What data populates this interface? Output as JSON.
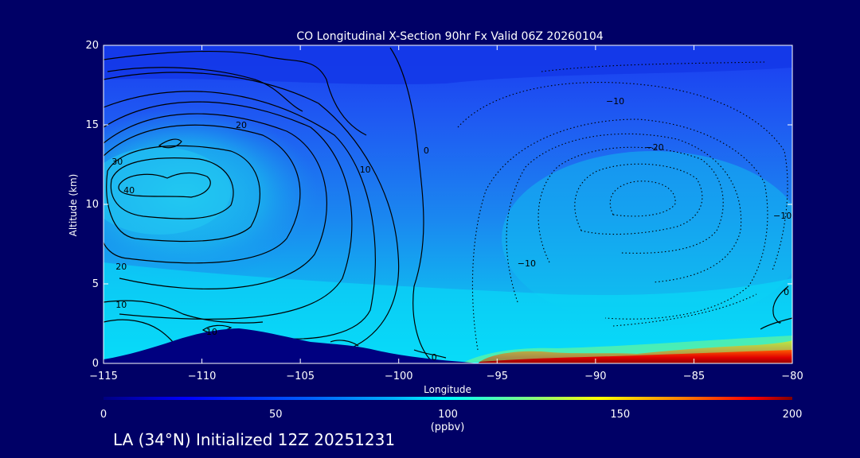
{
  "chart_data": {
    "type": "contour",
    "title": "CO Longitudinal X-Section 90hr  Fx Valid 06Z 20260104",
    "xlabel": "Longitude",
    "ylabel": "Altitude (km)",
    "xlim": [
      -115,
      -80
    ],
    "ylim": [
      0,
      20
    ],
    "x_ticks": [
      -115,
      -110,
      -105,
      -100,
      -95,
      -90,
      -85,
      -80
    ],
    "x_tick_labels": [
      "−115",
      "−110",
      "−105",
      "−100",
      "−95",
      "−90",
      "−85",
      "−80"
    ],
    "y_ticks": [
      0,
      5,
      10,
      15,
      20
    ],
    "y_tick_labels": [
      "0",
      "5",
      "10",
      "15",
      "20"
    ],
    "filled_field": {
      "name": "CO concentration",
      "description": "Filled contours; max ~200 ppbv near surface from -96 to -80; ~75-85 ppbv plume 5-14 km west of -105; ~20-35 ppbv in upper levels",
      "surface_max_ppbv": 200
    },
    "contour_labels": [
      {
        "text": "40",
        "lon": -113.7,
        "alt": 10.9
      },
      {
        "text": "30",
        "lon": -114.3,
        "alt": 12.7
      },
      {
        "text": "20",
        "lon": -108.0,
        "alt": 15.0
      },
      {
        "text": "20",
        "lon": -114.1,
        "alt": 6.1
      },
      {
        "text": "10",
        "lon": -114.1,
        "alt": 3.7
      },
      {
        "text": "10",
        "lon": -109.5,
        "alt": 2.0
      },
      {
        "text": "10",
        "lon": -101.7,
        "alt": 12.2
      },
      {
        "text": "0",
        "lon": -98.6,
        "alt": 13.4
      },
      {
        "text": "0",
        "lon": -98.2,
        "alt": 0.4
      },
      {
        "text": "−10",
        "lon": -89.0,
        "alt": 16.5
      },
      {
        "text": "−20",
        "lon": -87.0,
        "alt": 13.6
      },
      {
        "text": "−10",
        "lon": -93.5,
        "alt": 6.3
      },
      {
        "text": "−10",
        "lon": -80.5,
        "alt": 9.3
      },
      {
        "text": "0",
        "lon": -80.3,
        "alt": 4.5
      }
    ],
    "colorbar": {
      "min": 0,
      "max": 200,
      "ticks": [
        0,
        50,
        100,
        150,
        200
      ],
      "tick_labels": [
        "0",
        "50",
        "100",
        "150",
        "200"
      ],
      "units": "(ppbv)",
      "colormap": [
        "#000080",
        "#0000ff",
        "#0080ff",
        "#00ffff",
        "#80ff80",
        "#ffff00",
        "#ff8000",
        "#ff0000",
        "#800000"
      ]
    }
  },
  "footer": "LA (34°N) Initialized 12Z 20251231",
  "colors": {
    "background": "#000066",
    "terrain": "#000080",
    "text": "#ffffff"
  }
}
